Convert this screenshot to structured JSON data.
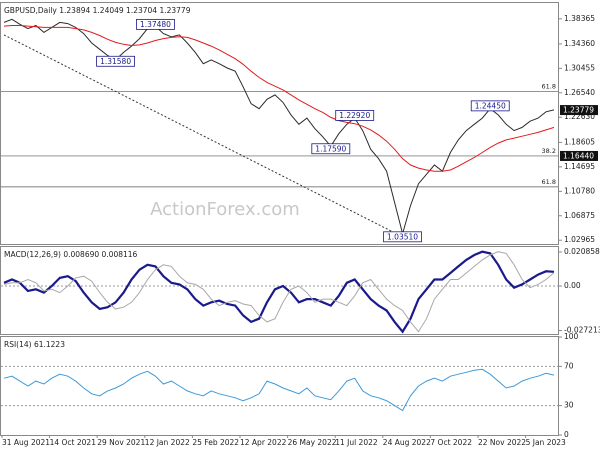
{
  "chart_data": [
    {
      "type": "line",
      "title": "GBPUSD,Daily  1.23894 1.24049 1.23704 1.23779",
      "ylim": [
        1.022,
        1.409
      ],
      "yticks": [
        1.02965,
        1.06875,
        {
          "value": 1.1078,
          "label": "1.10780"
        },
        1.14695,
        1.18605,
        {
          "value": 1.2263,
          "label": "1.22630"
        },
        {
          "value": 1.2654,
          "label": "1.26540"
        },
        1.30455,
        {
          "value": 1.3436,
          "label": "1.34360"
        },
        1.38365
      ],
      "xlim": [
        0,
        69
      ],
      "watermark": "ActionForex.com",
      "series": [
        {
          "name": "GBPUSD",
          "color": "#2b2b2b",
          "values": [
            1.378,
            1.383,
            1.375,
            1.368,
            1.373,
            1.362,
            1.37,
            1.378,
            1.376,
            1.37,
            1.36,
            1.345,
            1.335,
            1.325,
            1.318,
            1.33,
            1.34,
            1.352,
            1.368,
            1.372,
            1.36,
            1.355,
            1.358,
            1.345,
            1.33,
            1.312,
            1.318,
            1.312,
            1.305,
            1.3,
            1.275,
            1.248,
            1.24,
            1.255,
            1.262,
            1.25,
            1.23,
            1.215,
            1.225,
            1.208,
            1.195,
            1.18,
            1.2,
            1.215,
            1.225,
            1.205,
            1.175,
            1.16,
            1.14,
            1.09,
            1.04,
            1.085,
            1.12,
            1.135,
            1.15,
            1.14,
            1.17,
            1.19,
            1.205,
            1.215,
            1.225,
            1.24,
            1.23,
            1.215,
            1.205,
            1.21,
            1.22,
            1.225,
            1.235,
            1.238
          ]
        },
        {
          "name": "MA",
          "color": "#e31a1c",
          "values": [
            1.372,
            1.373,
            1.373,
            1.372,
            1.371,
            1.37,
            1.37,
            1.37,
            1.37,
            1.368,
            1.366,
            1.362,
            1.357,
            1.351,
            1.346,
            1.343,
            1.341,
            1.342,
            1.345,
            1.349,
            1.352,
            1.354,
            1.355,
            1.354,
            1.35,
            1.345,
            1.34,
            1.334,
            1.327,
            1.32,
            1.311,
            1.3,
            1.29,
            1.282,
            1.276,
            1.27,
            1.262,
            1.254,
            1.247,
            1.24,
            1.234,
            1.226,
            1.221,
            1.218,
            1.216,
            1.212,
            1.206,
            1.198,
            1.188,
            1.175,
            1.16,
            1.15,
            1.145,
            1.142,
            1.14,
            1.14,
            1.142,
            1.148,
            1.155,
            1.162,
            1.17,
            1.178,
            1.185,
            1.19,
            1.193,
            1.196,
            1.199,
            1.202,
            1.206,
            1.21
          ]
        }
      ],
      "trendline": {
        "x": [
          0,
          50
        ],
        "values": [
          1.358,
          1.0351
        ]
      },
      "levels": [
        {
          "value": 1.2678,
          "label": "61.8"
        },
        {
          "value": 1.1644,
          "label": "38.2"
        },
        {
          "value": 1.115,
          "label": "61.8"
        }
      ],
      "annotations": [
        {
          "text": "1.37480",
          "x": 19,
          "y": 1.3748
        },
        {
          "text": "1.31580",
          "x": 14,
          "y": 1.3158
        },
        {
          "text": "1.22920",
          "x": 44,
          "y": 1.2292
        },
        {
          "text": "1.17590",
          "x": 41,
          "y": 1.1759
        },
        {
          "text": "1.03510",
          "x": 50,
          "y": 1.0351
        },
        {
          "text": "1.24450",
          "x": 61,
          "y": 1.2445
        }
      ],
      "price_tags": [
        {
          "value": 1.23779,
          "label": "1.23779"
        },
        {
          "value": 1.1644,
          "label": "1.16440"
        }
      ]
    },
    {
      "type": "line",
      "title": "MACD(12,26,9) 0.008690 0.008116",
      "ylim": [
        -0.03,
        0.0239
      ],
      "yticks": [
        0.020858,
        {
          "value": 0,
          "label": "0.00"
        },
        -0.027213
      ],
      "xlim": [
        0,
        69
      ],
      "series": [
        {
          "name": "MACD",
          "color": "#1a1a8c",
          "values": [
            0.002,
            0.004,
            0.002,
            -0.003,
            -0.002,
            -0.004,
            0.0,
            0.005,
            0.006,
            0.003,
            -0.004,
            -0.01,
            -0.014,
            -0.013,
            -0.01,
            -0.004,
            0.004,
            0.01,
            0.013,
            0.012,
            0.006,
            0.002,
            0.001,
            -0.002,
            -0.008,
            -0.012,
            -0.01,
            -0.009,
            -0.011,
            -0.012,
            -0.018,
            -0.022,
            -0.02,
            -0.01,
            -0.002,
            0.0,
            -0.004,
            -0.01,
            -0.008,
            -0.008,
            -0.01,
            -0.012,
            -0.006,
            0.002,
            0.004,
            -0.002,
            -0.008,
            -0.012,
            -0.015,
            -0.022,
            -0.028,
            -0.02,
            -0.008,
            -0.002,
            0.004,
            0.004,
            0.008,
            0.012,
            0.016,
            0.019,
            0.021,
            0.02,
            0.013,
            0.004,
            -0.001,
            0.001,
            0.004,
            0.007,
            0.009,
            0.0087
          ]
        },
        {
          "name": "Signal",
          "color": "#a8a8a8",
          "values": [
            0.001,
            0.002,
            0.002,
            0.004,
            0.002,
            -0.003,
            -0.002,
            -0.004,
            0.0,
            0.005,
            0.006,
            0.003,
            -0.004,
            -0.01,
            -0.014,
            -0.013,
            -0.01,
            -0.004,
            0.004,
            0.01,
            0.013,
            0.012,
            0.006,
            0.002,
            0.001,
            -0.002,
            -0.008,
            -0.012,
            -0.01,
            -0.009,
            -0.011,
            -0.012,
            -0.018,
            -0.022,
            -0.02,
            -0.01,
            -0.002,
            0.0,
            -0.004,
            -0.01,
            -0.008,
            -0.008,
            -0.01,
            -0.012,
            -0.006,
            0.002,
            0.004,
            -0.002,
            -0.008,
            -0.012,
            -0.015,
            -0.022,
            -0.028,
            -0.02,
            -0.008,
            -0.002,
            0.004,
            0.004,
            0.008,
            0.012,
            0.016,
            0.019,
            0.021,
            0.02,
            0.013,
            0.004,
            -0.001,
            0.001,
            0.004,
            0.0081
          ]
        }
      ]
    },
    {
      "type": "line",
      "title": "RSI(14) 61.1223",
      "ylim": [
        0,
        100
      ],
      "yticks": [
        0,
        30,
        70,
        100
      ],
      "grid_levels": [
        30,
        70
      ],
      "xlim": [
        0,
        69
      ],
      "x_labels": [
        "31 Aug 2021",
        "14 Oct 2021",
        "29 Nov 2021",
        "12 Jan 2022",
        "25 Feb 2022",
        "12 Apr 2022",
        "26 May 2022",
        "11 Jul 2022",
        "24 Aug 2022",
        "7 Oct 2022",
        "22 Nov 2022",
        "5 Jan 2023"
      ],
      "series": [
        {
          "name": "RSI",
          "color": "#3d9ad8",
          "values": [
            58,
            60,
            55,
            50,
            55,
            52,
            58,
            62,
            60,
            55,
            48,
            42,
            40,
            45,
            48,
            52,
            58,
            62,
            65,
            60,
            52,
            55,
            50,
            45,
            42,
            40,
            45,
            42,
            40,
            38,
            35,
            38,
            42,
            55,
            52,
            48,
            45,
            42,
            48,
            40,
            38,
            36,
            45,
            55,
            58,
            45,
            40,
            38,
            35,
            30,
            25,
            40,
            50,
            55,
            58,
            55,
            60,
            62,
            64,
            66,
            67,
            62,
            55,
            48,
            50,
            55,
            58,
            60,
            63,
            61.1223
          ]
        }
      ]
    }
  ]
}
